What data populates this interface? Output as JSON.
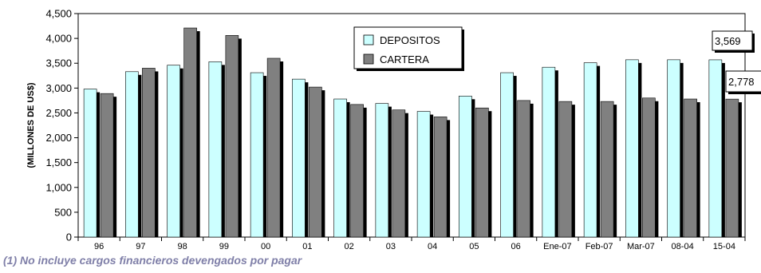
{
  "chart_data": {
    "type": "bar",
    "ylabel": "(MILLONES DE US$)",
    "ylim": [
      0,
      4500
    ],
    "yticks": [
      "0",
      "500",
      "1,000",
      "1,500",
      "2,000",
      "2,500",
      "3,000",
      "3,500",
      "4,000",
      "4,500"
    ],
    "categories": [
      "96",
      "97",
      "98",
      "99",
      "00",
      "01",
      "02",
      "03",
      "04",
      "05",
      "06",
      "Ene-07",
      "Feb-07",
      "Mar-07",
      "08-04",
      "15-04"
    ],
    "series": [
      {
        "name": "DEPOSITOS",
        "color": "#ccffff",
        "values": [
          2980,
          3330,
          3460,
          3530,
          3310,
          3180,
          2780,
          2690,
          2530,
          2840,
          3310,
          3420,
          3510,
          3570,
          3570,
          3569
        ]
      },
      {
        "name": "CARTERA",
        "color": "#808080",
        "values": [
          2890,
          3400,
          4210,
          4060,
          3600,
          3020,
          2670,
          2560,
          2420,
          2600,
          2750,
          2730,
          2730,
          2800,
          2780,
          2778
        ]
      }
    ],
    "legend_position": "top-center",
    "grid": false,
    "callouts": [
      {
        "series": "DEPOSITOS",
        "category": "15-04",
        "text": "3,569"
      },
      {
        "series": "CARTERA",
        "category": "15-04",
        "text": "2,778"
      }
    ]
  },
  "footnote": "(1) No incluye cargos  financieros devengados por pagar"
}
